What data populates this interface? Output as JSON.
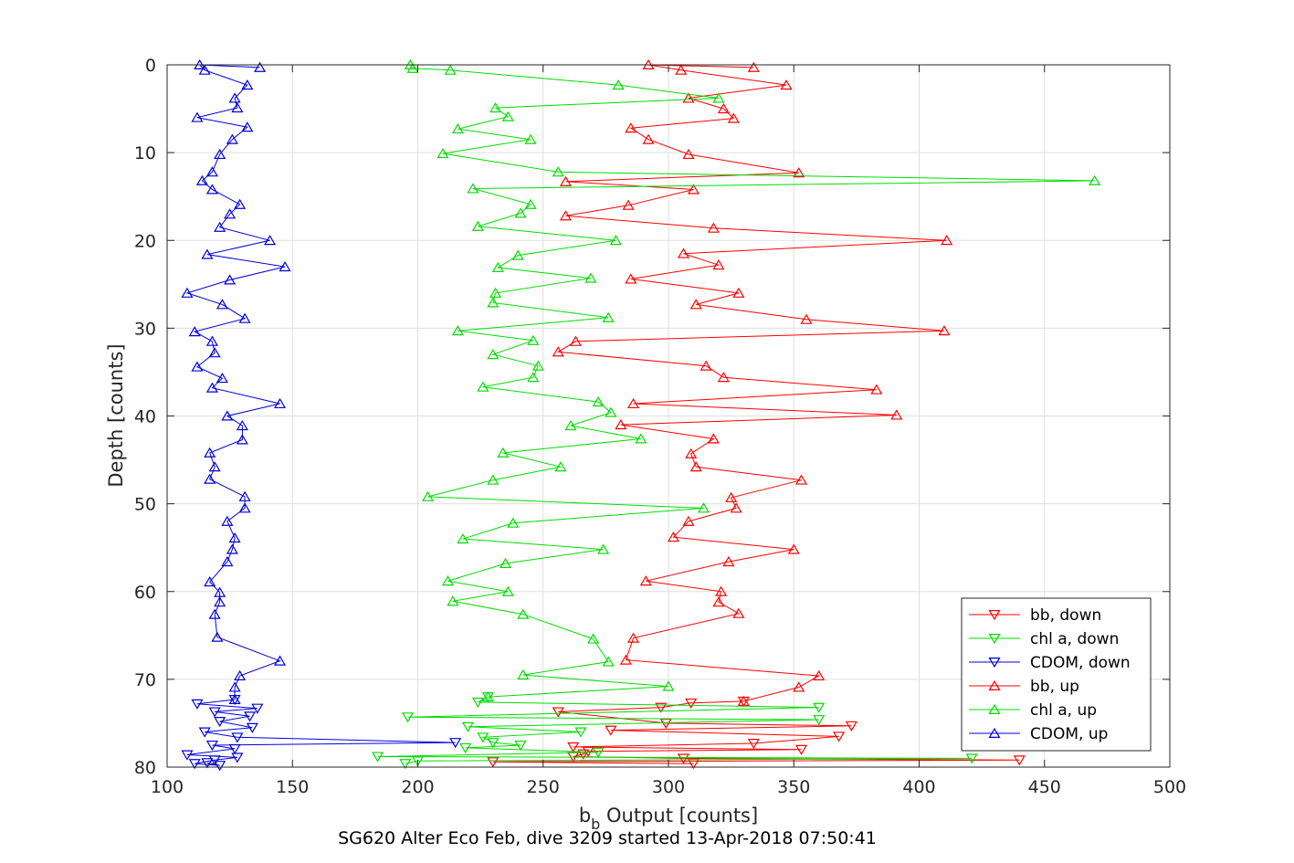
{
  "chart_data": {
    "type": "line",
    "title": "",
    "xlabel": "b_b Output [counts]",
    "xlabel_main": "b",
    "xlabel_sub": "b",
    "xlabel_rest": " Output [counts]",
    "ylabel": "Depth [counts]",
    "caption": "SG620 Alter Eco Feb, dive 3209 started 13-Apr-2018 07:50:41",
    "xlim": [
      100,
      500
    ],
    "ylim": [
      0,
      80
    ],
    "y_reversed": true,
    "grid": true,
    "legend_position": "lower-right",
    "x_ticks": [
      100,
      150,
      200,
      250,
      300,
      350,
      400,
      450,
      500
    ],
    "y_ticks": [
      0,
      10,
      20,
      30,
      40,
      50,
      60,
      70,
      80
    ],
    "series": [
      {
        "name": "bb, down",
        "color": "#ff0000",
        "marker": "triangle-down",
        "points": [
          [
            330,
            72.5
          ],
          [
            309,
            72.7
          ],
          [
            297,
            73.2
          ],
          [
            256,
            73.7
          ],
          [
            299,
            75.0
          ],
          [
            373,
            75.3
          ],
          [
            277,
            75.8
          ],
          [
            368,
            76.5
          ],
          [
            334,
            77.3
          ],
          [
            262,
            77.7
          ],
          [
            353,
            78.0
          ],
          [
            268,
            78.2
          ],
          [
            266,
            78.5
          ],
          [
            262,
            78.8
          ],
          [
            306,
            79.0
          ],
          [
            440,
            79.2
          ],
          [
            230,
            79.4
          ],
          [
            310,
            79.6
          ]
        ]
      },
      {
        "name": "chl a, down",
        "color": "#00dd00",
        "marker": "triangle-down",
        "points": [
          [
            228,
            72.0
          ],
          [
            224,
            72.6
          ],
          [
            360,
            73.2
          ],
          [
            196,
            74.3
          ],
          [
            360,
            74.6
          ],
          [
            220,
            75.4
          ],
          [
            265,
            76.0
          ],
          [
            226,
            76.6
          ],
          [
            230,
            77.2
          ],
          [
            241,
            77.5
          ],
          [
            219,
            77.8
          ],
          [
            272,
            78.3
          ],
          [
            184,
            78.8
          ],
          [
            421,
            79.0
          ],
          [
            200,
            79.3
          ],
          [
            195,
            79.6
          ]
        ]
      },
      {
        "name": "CDOM, down",
        "color": "#0000dd",
        "marker": "triangle-down",
        "points": [
          [
            127,
            72.3
          ],
          [
            112,
            72.8
          ],
          [
            136,
            73.3
          ],
          [
            119,
            73.7
          ],
          [
            133,
            74.2
          ],
          [
            121,
            74.8
          ],
          [
            134,
            75.5
          ],
          [
            115,
            76.0
          ],
          [
            128,
            76.6
          ],
          [
            215,
            77.2
          ],
          [
            118,
            77.5
          ],
          [
            127,
            77.9
          ],
          [
            108,
            78.6
          ],
          [
            128,
            78.9
          ],
          [
            119,
            79.2
          ],
          [
            111,
            79.6
          ],
          [
            121,
            79.8
          ],
          [
            116,
            79.5
          ]
        ]
      },
      {
        "name": "bb, up",
        "color": "#ff0000",
        "marker": "triangle-up",
        "points": [
          [
            334,
            0.3
          ],
          [
            292,
            0.0
          ],
          [
            305,
            0.6
          ],
          [
            347,
            2.3
          ],
          [
            308,
            3.8
          ],
          [
            322,
            5.0
          ],
          [
            326,
            6.1
          ],
          [
            285,
            7.2
          ],
          [
            292,
            8.5
          ],
          [
            308,
            10.2
          ],
          [
            352,
            12.3
          ],
          [
            259,
            13.3
          ],
          [
            310,
            14.2
          ],
          [
            284,
            16.0
          ],
          [
            259,
            17.2
          ],
          [
            318,
            18.6
          ],
          [
            411,
            20.0
          ],
          [
            306,
            21.5
          ],
          [
            320,
            22.8
          ],
          [
            285,
            24.4
          ],
          [
            328,
            26.0
          ],
          [
            311,
            27.3
          ],
          [
            355,
            29.0
          ],
          [
            410,
            30.3
          ],
          [
            263,
            31.5
          ],
          [
            256,
            32.7
          ],
          [
            315,
            34.3
          ],
          [
            322,
            35.6
          ],
          [
            383,
            37.0
          ],
          [
            286,
            38.6
          ],
          [
            391,
            39.9
          ],
          [
            281,
            41.0
          ],
          [
            318,
            42.6
          ],
          [
            309,
            44.3
          ],
          [
            311,
            45.8
          ],
          [
            353,
            47.3
          ],
          [
            325,
            49.3
          ],
          [
            327,
            50.5
          ],
          [
            308,
            52.0
          ],
          [
            302,
            53.8
          ],
          [
            350,
            55.2
          ],
          [
            324,
            56.6
          ],
          [
            291,
            58.8
          ],
          [
            321,
            60.0
          ],
          [
            320,
            61.2
          ],
          [
            328,
            62.5
          ],
          [
            286,
            65.3
          ],
          [
            283,
            67.8
          ],
          [
            360,
            69.6
          ],
          [
            352,
            70.9
          ],
          [
            330,
            72.5
          ]
        ]
      },
      {
        "name": "chl a, up",
        "color": "#00dd00",
        "marker": "triangle-up",
        "points": [
          [
            197,
            0.0
          ],
          [
            198,
            0.4
          ],
          [
            213,
            0.6
          ],
          [
            280,
            2.3
          ],
          [
            320,
            3.8
          ],
          [
            231,
            4.9
          ],
          [
            236,
            5.9
          ],
          [
            216,
            7.3
          ],
          [
            245,
            8.5
          ],
          [
            210,
            10.1
          ],
          [
            256,
            12.2
          ],
          [
            470,
            13.2
          ],
          [
            222,
            14.1
          ],
          [
            245,
            15.9
          ],
          [
            241,
            16.9
          ],
          [
            224,
            18.4
          ],
          [
            279,
            20.0
          ],
          [
            240,
            21.7
          ],
          [
            232,
            23.1
          ],
          [
            269,
            24.3
          ],
          [
            231,
            26.0
          ],
          [
            230,
            27.1
          ],
          [
            276,
            28.8
          ],
          [
            216,
            30.3
          ],
          [
            246,
            31.4
          ],
          [
            230,
            33.0
          ],
          [
            248,
            34.3
          ],
          [
            246,
            35.6
          ],
          [
            226,
            36.7
          ],
          [
            272,
            38.4
          ],
          [
            277,
            39.6
          ],
          [
            261,
            41.1
          ],
          [
            289,
            42.6
          ],
          [
            234,
            44.2
          ],
          [
            257,
            45.8
          ],
          [
            230,
            47.3
          ],
          [
            204,
            49.2
          ],
          [
            314,
            50.5
          ],
          [
            238,
            52.2
          ],
          [
            218,
            54.0
          ],
          [
            274,
            55.2
          ],
          [
            235,
            56.8
          ],
          [
            212,
            58.8
          ],
          [
            236,
            60.0
          ],
          [
            214,
            61.1
          ],
          [
            242,
            62.6
          ],
          [
            270,
            65.4
          ],
          [
            276,
            68.0
          ],
          [
            242,
            69.5
          ],
          [
            300,
            70.8
          ],
          [
            228,
            72.0
          ]
        ]
      },
      {
        "name": "CDOM, up",
        "color": "#0000dd",
        "marker": "triangle-up",
        "points": [
          [
            137,
            0.3
          ],
          [
            113,
            0.0
          ],
          [
            115,
            0.6
          ],
          [
            132,
            2.3
          ],
          [
            127,
            3.8
          ],
          [
            128,
            4.9
          ],
          [
            112,
            6.0
          ],
          [
            132,
            7.1
          ],
          [
            126,
            8.5
          ],
          [
            121,
            10.2
          ],
          [
            118,
            12.2
          ],
          [
            114,
            13.2
          ],
          [
            118,
            14.2
          ],
          [
            129,
            15.9
          ],
          [
            125,
            17.0
          ],
          [
            121,
            18.5
          ],
          [
            141,
            20.0
          ],
          [
            116,
            21.6
          ],
          [
            147,
            23.0
          ],
          [
            125,
            24.5
          ],
          [
            108,
            26.0
          ],
          [
            122,
            27.3
          ],
          [
            131,
            28.9
          ],
          [
            111,
            30.4
          ],
          [
            118,
            31.5
          ],
          [
            119,
            32.8
          ],
          [
            112,
            34.4
          ],
          [
            122,
            35.7
          ],
          [
            118,
            36.8
          ],
          [
            145,
            38.6
          ],
          [
            124,
            40.0
          ],
          [
            130,
            41.1
          ],
          [
            130,
            42.7
          ],
          [
            117,
            44.2
          ],
          [
            119,
            45.8
          ],
          [
            117,
            47.2
          ],
          [
            131,
            49.2
          ],
          [
            131,
            50.5
          ],
          [
            124,
            52.0
          ],
          [
            127,
            53.9
          ],
          [
            126,
            55.2
          ],
          [
            124,
            56.6
          ],
          [
            117,
            58.9
          ],
          [
            121,
            60.1
          ],
          [
            121,
            61.2
          ],
          [
            119,
            62.6
          ],
          [
            120,
            65.2
          ],
          [
            145,
            67.9
          ],
          [
            129,
            69.6
          ],
          [
            127,
            70.9
          ],
          [
            127,
            72.3
          ]
        ]
      }
    ]
  }
}
